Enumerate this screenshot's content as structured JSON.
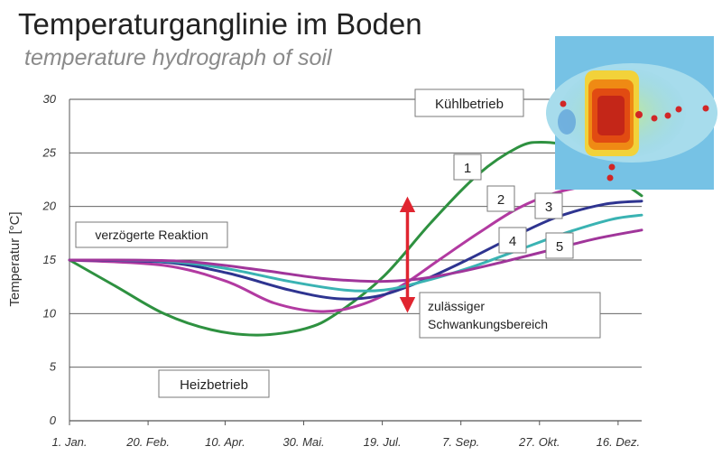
{
  "header": {
    "title": "Temperaturganglinie im Boden",
    "subtitle": "temperature hydrograph of soil"
  },
  "chart_data": {
    "type": "line",
    "title": "Temperaturganglinie im Boden",
    "subtitle": "temperature hydrograph of soil",
    "ylabel": "Temperatur [°C]",
    "xlabel": "",
    "x_ticks": [
      "1. Jan.",
      "20. Feb.",
      "10. Apr.",
      "30. Mai.",
      "19. Jul.",
      "7. Sep.",
      "27. Okt.",
      "16. Dez."
    ],
    "x_tick_days": [
      0,
      50,
      99,
      149,
      199,
      249,
      299,
      349
    ],
    "xlim_days": [
      0,
      364
    ],
    "ylim": [
      0,
      30
    ],
    "y_ticks": [
      0,
      5,
      10,
      15,
      20,
      25,
      30
    ],
    "grid": true,
    "series": [
      {
        "name": "1",
        "color": "#2e9140",
        "points": [
          [
            0,
            15
          ],
          [
            30,
            12.5
          ],
          [
            60,
            10
          ],
          [
            90,
            8.5
          ],
          [
            120,
            8
          ],
          [
            150,
            8.6
          ],
          [
            170,
            10
          ],
          [
            200,
            13.5
          ],
          [
            230,
            18.5
          ],
          [
            260,
            23
          ],
          [
            285,
            25.5
          ],
          [
            300,
            26
          ],
          [
            320,
            25.5
          ],
          [
            340,
            23.5
          ],
          [
            364,
            21
          ]
        ]
      },
      {
        "name": "2",
        "color": "#b23aa1",
        "points": [
          [
            0,
            15
          ],
          [
            60,
            14.5
          ],
          [
            100,
            13
          ],
          [
            130,
            11
          ],
          [
            160,
            10.2
          ],
          [
            185,
            10.8
          ],
          [
            210,
            12.5
          ],
          [
            235,
            15
          ],
          [
            260,
            17.5
          ],
          [
            285,
            19.8
          ],
          [
            310,
            21.3
          ],
          [
            335,
            22
          ],
          [
            364,
            22.3
          ]
        ]
      },
      {
        "name": "3",
        "color": "#2e3490",
        "points": [
          [
            0,
            15
          ],
          [
            60,
            14.8
          ],
          [
            100,
            13.8
          ],
          [
            140,
            12.2
          ],
          [
            170,
            11.4
          ],
          [
            195,
            11.6
          ],
          [
            220,
            12.8
          ],
          [
            250,
            14.8
          ],
          [
            280,
            17
          ],
          [
            310,
            19
          ],
          [
            340,
            20.2
          ],
          [
            364,
            20.5
          ]
        ]
      },
      {
        "name": "4",
        "color": "#3ab3b3",
        "points": [
          [
            0,
            15
          ],
          [
            60,
            14.9
          ],
          [
            100,
            14.2
          ],
          [
            140,
            13
          ],
          [
            175,
            12.2
          ],
          [
            200,
            12.2
          ],
          [
            225,
            13
          ],
          [
            255,
            14.3
          ],
          [
            285,
            15.9
          ],
          [
            315,
            17.5
          ],
          [
            345,
            18.8
          ],
          [
            364,
            19.2
          ]
        ]
      },
      {
        "name": "5",
        "color": "#a0359a",
        "points": [
          [
            0,
            15
          ],
          [
            70,
            14.9
          ],
          [
            120,
            14.1
          ],
          [
            160,
            13.3
          ],
          [
            195,
            13
          ],
          [
            220,
            13.2
          ],
          [
            245,
            13.8
          ],
          [
            275,
            14.8
          ],
          [
            305,
            15.9
          ],
          [
            335,
            17
          ],
          [
            364,
            17.8
          ]
        ]
      }
    ],
    "annotations": [
      {
        "id": "kuehl",
        "text": "Kühlbetrieb",
        "color": "#2ca0c9"
      },
      {
        "id": "heiz",
        "text": "Heizbetrieb",
        "color": "#cf2330"
      },
      {
        "id": "verz",
        "text": "verzögerte Reaktion",
        "color": "#222222"
      },
      {
        "id": "schwank1",
        "text": "zulässiger",
        "color": "#222222"
      },
      {
        "id": "schwank2",
        "text": "Schwankungsbereich",
        "color": "#222222"
      }
    ],
    "arrow": {
      "x_day": 215,
      "y_from": 10.3,
      "y_to": 20.7,
      "color": "#e02530"
    }
  }
}
